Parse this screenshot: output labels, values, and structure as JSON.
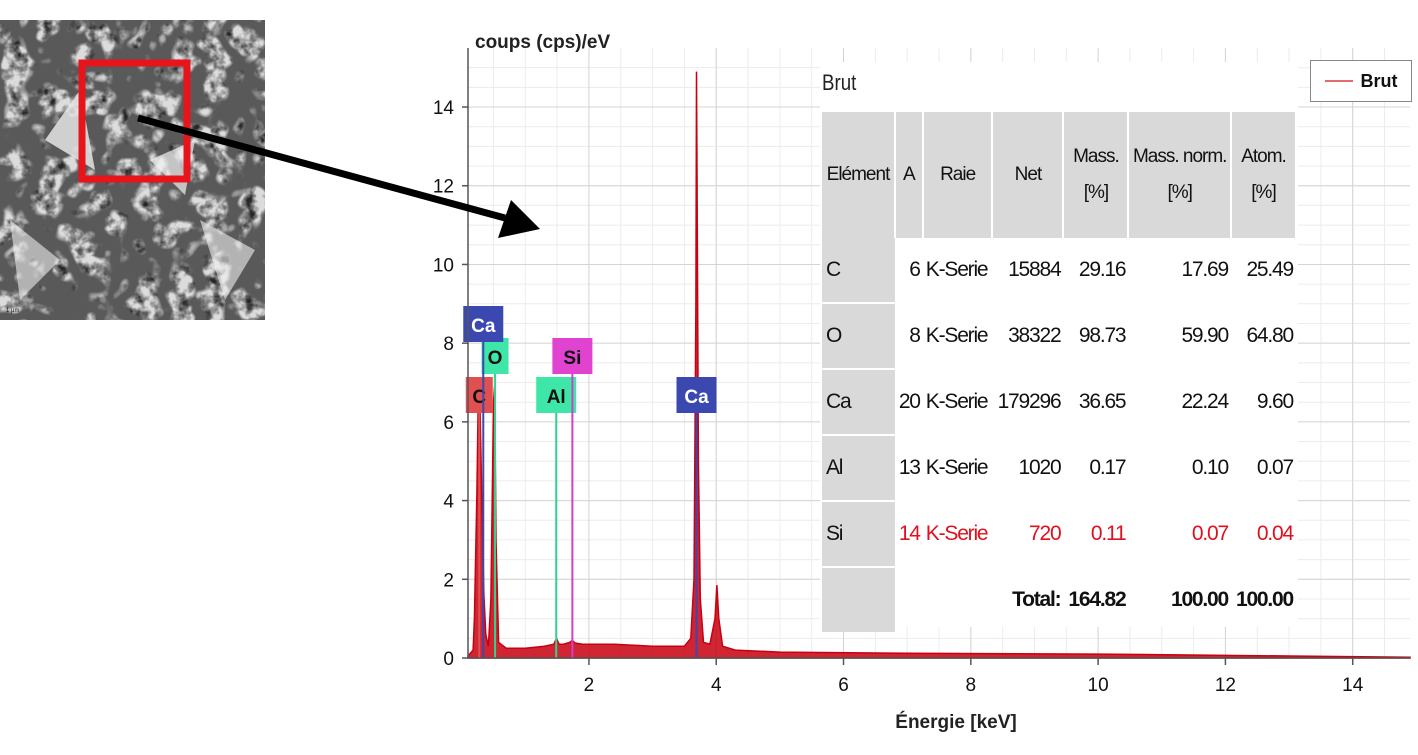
{
  "chart_data": {
    "type": "line",
    "xlabel": "Énergie [keV]",
    "ylabel": "coups (cps)/eV",
    "xlim": [
      0.1,
      14.9
    ],
    "ylim": [
      0,
      15.5
    ],
    "xticks": [
      2,
      4,
      6,
      8,
      10,
      12,
      14
    ],
    "yticks": [
      0,
      2,
      4,
      6,
      8,
      10,
      12,
      14
    ],
    "grid": true,
    "legend_position": "top-right",
    "series": [
      {
        "name": "Brut",
        "color": "#c8000f",
        "x": [
          0.1,
          0.18,
          0.2,
          0.24,
          0.26,
          0.28,
          0.3,
          0.33,
          0.35,
          0.38,
          0.42,
          0.46,
          0.5,
          0.52,
          0.54,
          0.58,
          0.7,
          1.0,
          1.3,
          1.45,
          1.49,
          1.53,
          1.6,
          1.7,
          1.74,
          1.78,
          1.9,
          2.4,
          3.0,
          3.5,
          3.6,
          3.65,
          3.68,
          3.69,
          3.7,
          3.72,
          3.75,
          3.8,
          3.9,
          3.98,
          4.01,
          4.04,
          4.1,
          4.3,
          5.0,
          7.0,
          10.0,
          13.0,
          14.9
        ],
        "y": [
          0.05,
          0.2,
          1.0,
          4.2,
          6.5,
          7.1,
          5.5,
          3.0,
          1.6,
          0.6,
          0.3,
          1.5,
          6.5,
          6.9,
          3.0,
          0.4,
          0.25,
          0.25,
          0.3,
          0.35,
          0.5,
          0.35,
          0.35,
          0.4,
          0.45,
          0.38,
          0.35,
          0.35,
          0.3,
          0.3,
          0.5,
          2.0,
          9.0,
          14.9,
          12.0,
          5.0,
          1.5,
          0.4,
          0.35,
          1.0,
          1.85,
          1.0,
          0.3,
          0.2,
          0.15,
          0.12,
          0.1,
          0.05,
          0.02
        ]
      }
    ],
    "element_markers": [
      {
        "label": "C",
        "energy": 0.277,
        "color": "#e05050",
        "bg": "#e05050"
      },
      {
        "label": "O",
        "energy": 0.525,
        "color": "#2fd48f",
        "bg": "#3ee6a8"
      },
      {
        "label": "Al",
        "energy": 1.486,
        "color": "#2fd48f",
        "bg": "#3ee6a8"
      },
      {
        "label": "Si",
        "energy": 1.74,
        "color": "#d040c8",
        "bg": "#e043d0"
      },
      {
        "label": "Ca",
        "energy": 3.69,
        "color": "#3a48b0",
        "bg": "#3a48b0"
      },
      {
        "label": "Ca",
        "energy": 0.34,
        "color": "#3a48b0",
        "bg": "#3a48b0"
      }
    ]
  },
  "legend": {
    "label": "Brut"
  },
  "table": {
    "title": "Brut",
    "headers": [
      "Elément",
      "A",
      "Raie",
      "Net",
      "Mass.\n[%]",
      "Mass. norm.\n[%]",
      "Atom.\n[%]"
    ],
    "rows": [
      [
        "C",
        "6",
        "K-Serie",
        "15884",
        "29.16",
        "17.69",
        "25.49"
      ],
      [
        "O",
        "8",
        "K-Serie",
        "38322",
        "98.73",
        "59.90",
        "64.80"
      ],
      [
        "Ca",
        "20",
        "K-Serie",
        "179296",
        "36.65",
        "22.24",
        "9.60"
      ],
      [
        "Al",
        "13",
        "K-Serie",
        "1020",
        "0.17",
        "0.10",
        "0.07"
      ],
      [
        "Si",
        "14",
        "K-Serie",
        "720",
        "0.11",
        "0.07",
        "0.04"
      ]
    ],
    "total": {
      "label": "Total:",
      "mass": "164.82",
      "mass_norm": "100.00",
      "atom": "100.00"
    }
  },
  "micrograph": {
    "highlight_color": "#e8141c",
    "scale_text": "1 µm"
  }
}
